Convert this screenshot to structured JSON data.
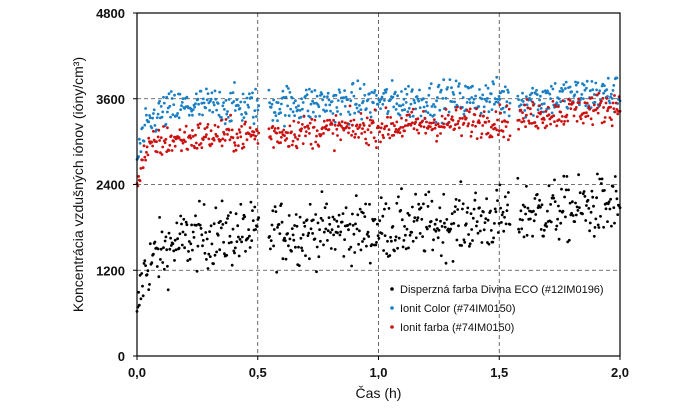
{
  "chart_data": {
    "type": "scatter",
    "title": "",
    "xlabel": "Čas (h)",
    "ylabel": "Koncentrácia vzdušných iónov (ióny/cm³)",
    "xlim": [
      0,
      2.0
    ],
    "ylim": [
      0,
      4800
    ],
    "x_ticks": [
      {
        "value": 0.0,
        "label": "0,0"
      },
      {
        "value": 0.5,
        "label": "0,5"
      },
      {
        "value": 1.0,
        "label": "1,0"
      },
      {
        "value": 1.5,
        "label": "1,5"
      },
      {
        "value": 2.0,
        "label": "2,0"
      }
    ],
    "y_ticks": [
      {
        "value": 0,
        "label": "0"
      },
      {
        "value": 1200,
        "label": "1200"
      },
      {
        "value": 2400,
        "label": "2400"
      },
      {
        "value": 3600,
        "label": "3600"
      },
      {
        "value": 4800,
        "label": "4800"
      }
    ],
    "grid": "dashed",
    "legend_position": "bottom-right",
    "series": [
      {
        "name": "Disperzná farba Divina ECO (#12IM0196)",
        "color": "#000000",
        "x": [
          0.0,
          0.005,
          0.01,
          0.02,
          0.03,
          0.05,
          0.08,
          0.1,
          0.15,
          0.2,
          0.25,
          0.3,
          0.35,
          0.4,
          0.45,
          0.5,
          0.55,
          0.6,
          0.7,
          0.8,
          0.9,
          1.0,
          1.1,
          1.2,
          1.3,
          1.4,
          1.5,
          1.55,
          1.6,
          1.7,
          1.8,
          1.9,
          2.0
        ],
        "y": [
          400,
          600,
          800,
          1000,
          1150,
          1300,
          1400,
          1450,
          1550,
          1620,
          1660,
          1680,
          1690,
          1700,
          1700,
          1690,
          1720,
          1740,
          1750,
          1760,
          1770,
          1780,
          1800,
          1830,
          1860,
          1890,
          1920,
          1960,
          2000,
          2020,
          2050,
          2080,
          2100
        ]
      },
      {
        "name": "Ionit Color (#74IM0150)",
        "color": "#1a7fc4",
        "x": [
          0.0,
          0.01,
          0.03,
          0.05,
          0.08,
          0.1,
          0.15,
          0.2,
          0.25,
          0.3,
          0.35,
          0.4,
          0.45,
          0.5,
          0.55,
          0.6,
          0.7,
          0.8,
          0.9,
          1.0,
          1.1,
          1.2,
          1.3,
          1.4,
          1.5,
          1.55,
          1.6,
          1.7,
          1.8,
          1.9,
          2.0
        ],
        "y": [
          2700,
          2900,
          3100,
          3250,
          3350,
          3400,
          3450,
          3480,
          3500,
          3500,
          3510,
          3500,
          3500,
          3500,
          3510,
          3520,
          3530,
          3540,
          3550,
          3560,
          3570,
          3580,
          3590,
          3600,
          3610,
          3580,
          3600,
          3620,
          3640,
          3660,
          3680
        ]
      },
      {
        "name": "Ionit farba (#74IM0150)",
        "color": "#cc1111",
        "x": [
          0.0,
          0.01,
          0.03,
          0.05,
          0.08,
          0.1,
          0.15,
          0.2,
          0.25,
          0.3,
          0.35,
          0.4,
          0.45,
          0.5,
          0.55,
          0.6,
          0.7,
          0.8,
          0.9,
          1.0,
          1.1,
          1.2,
          1.3,
          1.4,
          1.5,
          1.55,
          1.6,
          1.7,
          1.8,
          1.9,
          2.0
        ],
        "y": [
          2350,
          2600,
          2800,
          2900,
          2950,
          3000,
          3020,
          3040,
          3060,
          3080,
          3090,
          3080,
          3090,
          3100,
          3100,
          3120,
          3140,
          3160,
          3180,
          3200,
          3220,
          3240,
          3260,
          3280,
          3300,
          3260,
          3350,
          3400,
          3430,
          3460,
          3500
        ]
      }
    ]
  }
}
